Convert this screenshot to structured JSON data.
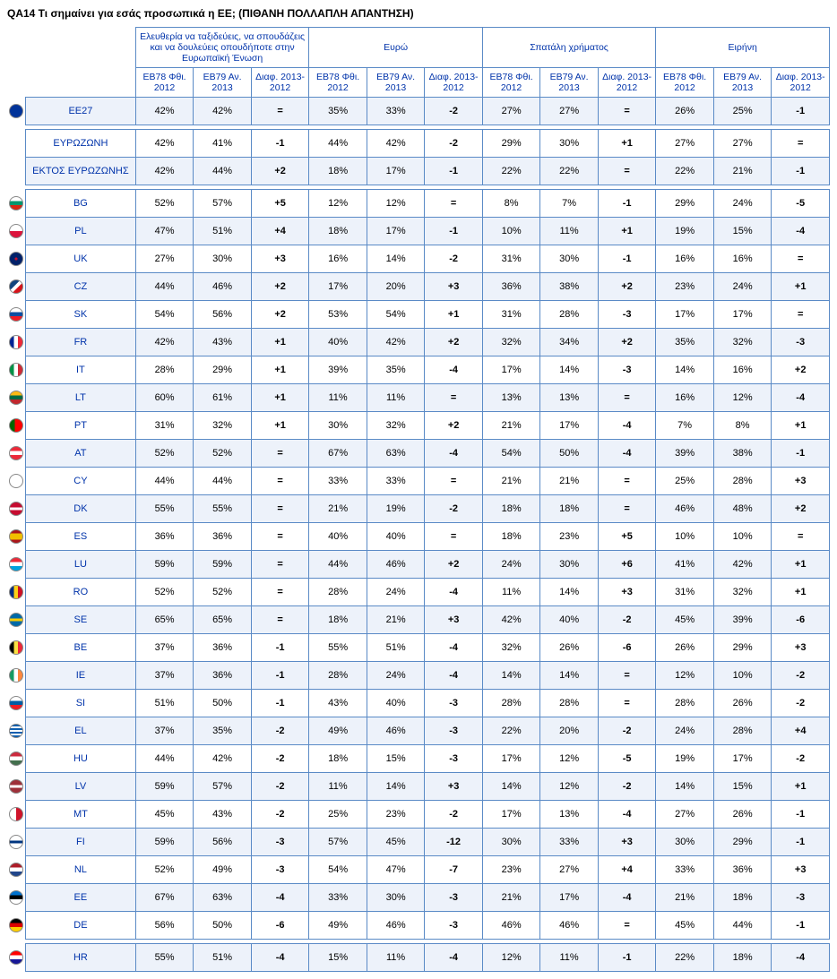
{
  "title": "QA14 Τι σημαίνει για εσάς προσωπικά η ΕΕ; (ΠΙΘΑΝΗ ΠΟΛΛΑΠΛΗ ΑΠΑΝΤΗΣΗ)",
  "groups": [
    "Ελευθερία να ταξιδεύεις, να σπουδάζεις και να δουλεύεις οπουδήποτε στην Ευρωπαϊκή Ένωση",
    "Ευρώ",
    "Σπατάλη χρήματος",
    "Ειρήνη"
  ],
  "subheaders": [
    "ΕΒ78 Φθι. 2012",
    "ΕΒ79 Αν. 2013",
    "Διαφ. 2013-2012"
  ],
  "rows": [
    {
      "flag": "eu",
      "name": "ΕΕ27",
      "shade": true,
      "sep": true,
      "c": [
        "42%",
        "42%",
        "=",
        "35%",
        "33%",
        "-2",
        "27%",
        "27%",
        "=",
        "26%",
        "25%",
        "-1"
      ]
    },
    {
      "flag": "",
      "name": "ΕΥΡΩΖΩΝΗ",
      "shade": false,
      "c": [
        "42%",
        "41%",
        "-1",
        "44%",
        "42%",
        "-2",
        "29%",
        "30%",
        "+1",
        "27%",
        "27%",
        "="
      ]
    },
    {
      "flag": "",
      "name": "ΕΚΤΟΣ ΕΥΡΩΖΩΝΗΣ",
      "shade": true,
      "sep": true,
      "c": [
        "42%",
        "44%",
        "+2",
        "18%",
        "17%",
        "-1",
        "22%",
        "22%",
        "=",
        "22%",
        "21%",
        "-1"
      ]
    },
    {
      "flag": "bg",
      "name": "BG",
      "shade": false,
      "c": [
        "52%",
        "57%",
        "+5",
        "12%",
        "12%",
        "=",
        "8%",
        "7%",
        "-1",
        "29%",
        "24%",
        "-5"
      ]
    },
    {
      "flag": "pl",
      "name": "PL",
      "shade": true,
      "c": [
        "47%",
        "51%",
        "+4",
        "18%",
        "17%",
        "-1",
        "10%",
        "11%",
        "+1",
        "19%",
        "15%",
        "-4"
      ]
    },
    {
      "flag": "uk",
      "name": "UK",
      "shade": false,
      "c": [
        "27%",
        "30%",
        "+3",
        "16%",
        "14%",
        "-2",
        "31%",
        "30%",
        "-1",
        "16%",
        "16%",
        "="
      ]
    },
    {
      "flag": "cz",
      "name": "CZ",
      "shade": true,
      "c": [
        "44%",
        "46%",
        "+2",
        "17%",
        "20%",
        "+3",
        "36%",
        "38%",
        "+2",
        "23%",
        "24%",
        "+1"
      ]
    },
    {
      "flag": "sk",
      "name": "SK",
      "shade": false,
      "c": [
        "54%",
        "56%",
        "+2",
        "53%",
        "54%",
        "+1",
        "31%",
        "28%",
        "-3",
        "17%",
        "17%",
        "="
      ]
    },
    {
      "flag": "fr",
      "name": "FR",
      "shade": true,
      "c": [
        "42%",
        "43%",
        "+1",
        "40%",
        "42%",
        "+2",
        "32%",
        "34%",
        "+2",
        "35%",
        "32%",
        "-3"
      ]
    },
    {
      "flag": "it",
      "name": "IT",
      "shade": false,
      "c": [
        "28%",
        "29%",
        "+1",
        "39%",
        "35%",
        "-4",
        "17%",
        "14%",
        "-3",
        "14%",
        "16%",
        "+2"
      ]
    },
    {
      "flag": "lt",
      "name": "LT",
      "shade": true,
      "c": [
        "60%",
        "61%",
        "+1",
        "11%",
        "11%",
        "=",
        "13%",
        "13%",
        "=",
        "16%",
        "12%",
        "-4"
      ]
    },
    {
      "flag": "pt",
      "name": "PT",
      "shade": false,
      "c": [
        "31%",
        "32%",
        "+1",
        "30%",
        "32%",
        "+2",
        "21%",
        "17%",
        "-4",
        "7%",
        "8%",
        "+1"
      ]
    },
    {
      "flag": "at",
      "name": "AT",
      "shade": true,
      "c": [
        "52%",
        "52%",
        "=",
        "67%",
        "63%",
        "-4",
        "54%",
        "50%",
        "-4",
        "39%",
        "38%",
        "-1"
      ]
    },
    {
      "flag": "cy",
      "name": "CY",
      "shade": false,
      "c": [
        "44%",
        "44%",
        "=",
        "33%",
        "33%",
        "=",
        "21%",
        "21%",
        "=",
        "25%",
        "28%",
        "+3"
      ]
    },
    {
      "flag": "dk",
      "name": "DK",
      "shade": true,
      "c": [
        "55%",
        "55%",
        "=",
        "21%",
        "19%",
        "-2",
        "18%",
        "18%",
        "=",
        "46%",
        "48%",
        "+2"
      ]
    },
    {
      "flag": "es",
      "name": "ES",
      "shade": false,
      "c": [
        "36%",
        "36%",
        "=",
        "40%",
        "40%",
        "=",
        "18%",
        "23%",
        "+5",
        "10%",
        "10%",
        "="
      ]
    },
    {
      "flag": "lu",
      "name": "LU",
      "shade": true,
      "c": [
        "59%",
        "59%",
        "=",
        "44%",
        "46%",
        "+2",
        "24%",
        "30%",
        "+6",
        "41%",
        "42%",
        "+1"
      ]
    },
    {
      "flag": "ro",
      "name": "RO",
      "shade": false,
      "c": [
        "52%",
        "52%",
        "=",
        "28%",
        "24%",
        "-4",
        "11%",
        "14%",
        "+3",
        "31%",
        "32%",
        "+1"
      ]
    },
    {
      "flag": "se",
      "name": "SE",
      "shade": true,
      "c": [
        "65%",
        "65%",
        "=",
        "18%",
        "21%",
        "+3",
        "42%",
        "40%",
        "-2",
        "45%",
        "39%",
        "-6"
      ]
    },
    {
      "flag": "be",
      "name": "BE",
      "shade": false,
      "c": [
        "37%",
        "36%",
        "-1",
        "55%",
        "51%",
        "-4",
        "32%",
        "26%",
        "-6",
        "26%",
        "29%",
        "+3"
      ]
    },
    {
      "flag": "ie",
      "name": "IE",
      "shade": true,
      "c": [
        "37%",
        "36%",
        "-1",
        "28%",
        "24%",
        "-4",
        "14%",
        "14%",
        "=",
        "12%",
        "10%",
        "-2"
      ]
    },
    {
      "flag": "si",
      "name": "SI",
      "shade": false,
      "c": [
        "51%",
        "50%",
        "-1",
        "43%",
        "40%",
        "-3",
        "28%",
        "28%",
        "=",
        "28%",
        "26%",
        "-2"
      ]
    },
    {
      "flag": "el",
      "name": "EL",
      "shade": true,
      "c": [
        "37%",
        "35%",
        "-2",
        "49%",
        "46%",
        "-3",
        "22%",
        "20%",
        "-2",
        "24%",
        "28%",
        "+4"
      ]
    },
    {
      "flag": "hu",
      "name": "HU",
      "shade": false,
      "c": [
        "44%",
        "42%",
        "-2",
        "18%",
        "15%",
        "-3",
        "17%",
        "12%",
        "-5",
        "19%",
        "17%",
        "-2"
      ]
    },
    {
      "flag": "lv",
      "name": "LV",
      "shade": true,
      "c": [
        "59%",
        "57%",
        "-2",
        "11%",
        "14%",
        "+3",
        "14%",
        "12%",
        "-2",
        "14%",
        "15%",
        "+1"
      ]
    },
    {
      "flag": "mt",
      "name": "MT",
      "shade": false,
      "c": [
        "45%",
        "43%",
        "-2",
        "25%",
        "23%",
        "-2",
        "17%",
        "13%",
        "-4",
        "27%",
        "26%",
        "-1"
      ]
    },
    {
      "flag": "fi",
      "name": "FI",
      "shade": true,
      "c": [
        "59%",
        "56%",
        "-3",
        "57%",
        "45%",
        "-12",
        "30%",
        "33%",
        "+3",
        "30%",
        "29%",
        "-1"
      ]
    },
    {
      "flag": "nl",
      "name": "NL",
      "shade": false,
      "c": [
        "52%",
        "49%",
        "-3",
        "54%",
        "47%",
        "-7",
        "23%",
        "27%",
        "+4",
        "33%",
        "36%",
        "+3"
      ]
    },
    {
      "flag": "ee",
      "name": "EE",
      "shade": true,
      "c": [
        "67%",
        "63%",
        "-4",
        "33%",
        "30%",
        "-3",
        "21%",
        "17%",
        "-4",
        "21%",
        "18%",
        "-3"
      ]
    },
    {
      "flag": "de",
      "name": "DE",
      "shade": false,
      "sep": true,
      "c": [
        "56%",
        "50%",
        "-6",
        "49%",
        "46%",
        "-3",
        "46%",
        "46%",
        "=",
        "45%",
        "44%",
        "-1"
      ]
    },
    {
      "flag": "hr",
      "name": "HR",
      "shade": true,
      "c": [
        "55%",
        "51%",
        "-4",
        "15%",
        "11%",
        "-4",
        "12%",
        "11%",
        "-1",
        "22%",
        "18%",
        "-4"
      ]
    }
  ],
  "flags": {
    "eu": "radial-gradient(circle,#003399 60%,#003399 100%)",
    "bg": "linear-gradient(#fff 33%,#00966e 33% 66%,#d62612 66%)",
    "pl": "linear-gradient(#fff 50%,#dc143c 50%)",
    "uk": "radial-gradient(circle,#c8102e 15%,#012169 15%)",
    "cz": "linear-gradient(135deg,#11457e 40%,#fff 40% 60%,#d7141a 60%)",
    "sk": "linear-gradient(#fff 33%,#0b4ea2 33% 66%,#ee1c25 66%)",
    "fr": "linear-gradient(90deg,#002395 33%,#fff 33% 66%,#ed2939 66%)",
    "it": "linear-gradient(90deg,#009246 33%,#fff 33% 66%,#ce2b37 66%)",
    "lt": "linear-gradient(#fdb913 33%,#006a44 33% 66%,#c1272d 66%)",
    "pt": "linear-gradient(90deg,#006600 40%,#ff0000 40%)",
    "at": "linear-gradient(#ed2939 33%,#fff 33% 66%,#ed2939 66%)",
    "cy": "#fff",
    "dk": "linear-gradient(#c60c30 40%,#fff 40% 60%,#c60c30 60%)",
    "es": "linear-gradient(#aa151b 25%,#f1bf00 25% 75%,#aa151b 75%)",
    "lu": "linear-gradient(#ed2939 33%,#fff 33% 66%,#00a1de 66%)",
    "ro": "linear-gradient(90deg,#002b7f 33%,#fcd116 33% 66%,#ce1126 66%)",
    "se": "linear-gradient(#006aa7 40%,#fecc00 40% 60%,#006aa7 60%)",
    "be": "linear-gradient(90deg,#000 33%,#fae042 33% 66%,#ed2939 66%)",
    "ie": "linear-gradient(90deg,#169b62 33%,#fff 33% 66%,#ff883e 66%)",
    "si": "linear-gradient(#fff 33%,#005da4 33% 66%,#ed1c24 66%)",
    "el": "repeating-linear-gradient(#0d5eaf 0 2px,#fff 2px 4px)",
    "hu": "linear-gradient(#cd2a3e 33%,#fff 33% 66%,#436f4d 66%)",
    "lv": "linear-gradient(#9e3039 40%,#fff 40% 60%,#9e3039 60%)",
    "mt": "linear-gradient(90deg,#fff 50%,#cf142b 50%)",
    "fi": "linear-gradient(#fff 40%,#003580 40% 60%,#fff 60%)",
    "nl": "linear-gradient(#ae1c28 33%,#fff 33% 66%,#21468b 66%)",
    "ee": "linear-gradient(#0072ce 33%,#000 33% 66%,#fff 66%)",
    "de": "linear-gradient(#000 33%,#dd0000 33% 66%,#ffce00 66%)",
    "hr": "linear-gradient(#ff0000 33%,#fff 33% 66%,#171796 66%)"
  }
}
